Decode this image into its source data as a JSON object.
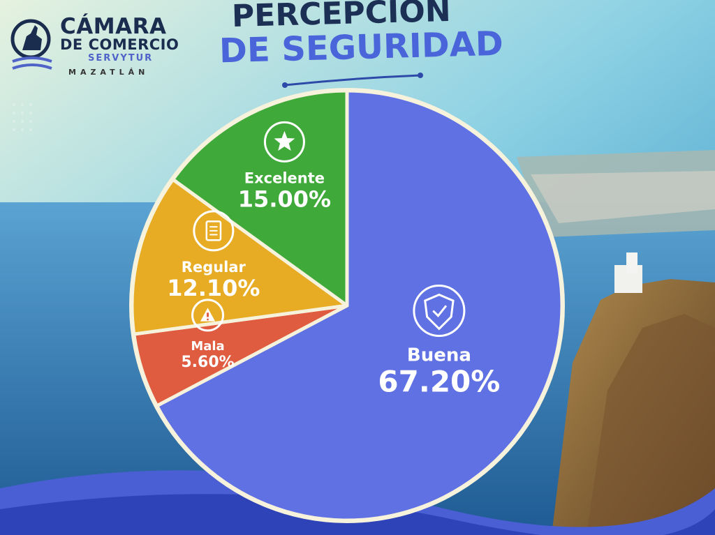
{
  "header": {
    "logo": {
      "line1": "CÁMARA",
      "line2": "DE COMERCIO",
      "line3": "SERVYTUR",
      "line4": "MAZATLÁN"
    },
    "title_line1": "PERCEPCION",
    "title_line2": "DE SEGURIDAD"
  },
  "chart_data": {
    "type": "pie",
    "slices": [
      {
        "label": "Buena",
        "value": 67.2,
        "display": "67.20%",
        "color": "#6071e3",
        "icon": "shield-check-icon"
      },
      {
        "label": "Mala",
        "value": 5.6,
        "display": "5.60%",
        "color": "#e05c40",
        "icon": "warning-icon"
      },
      {
        "label": "Regular",
        "value": 12.1,
        "display": "12.10%",
        "color": "#e7ac24",
        "icon": "clipboard-icon"
      },
      {
        "label": "Excelente",
        "value": 15.0,
        "display": "15.00%",
        "color": "#3fa93a",
        "icon": "star-icon"
      }
    ]
  },
  "colors": {
    "title_dark": "#1c2f55",
    "title_accent": "#4a64d9",
    "slice_border": "#f6f2dc"
  }
}
